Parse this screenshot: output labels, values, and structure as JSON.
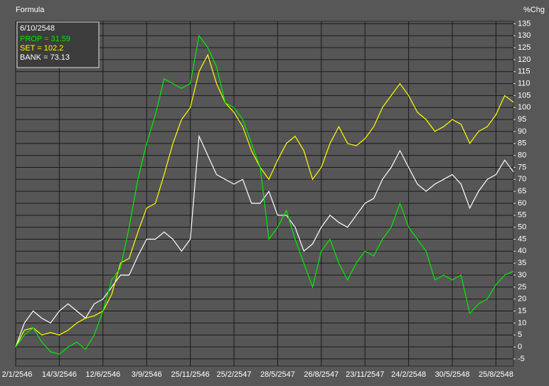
{
  "chart_data": {
    "type": "line",
    "title": "Formula",
    "y_axis_label": "%Chg",
    "legend_title": "6/10/2548",
    "categories": [
      "2/1/2546",
      null,
      null,
      null,
      null,
      "14/3/2546",
      null,
      null,
      null,
      null,
      "12/6/2546",
      null,
      null,
      null,
      null,
      "3/9/2546",
      null,
      null,
      null,
      null,
      "25/11/2546",
      null,
      null,
      null,
      null,
      "25/2/2547",
      null,
      null,
      null,
      null,
      "28/5/2547",
      null,
      null,
      null,
      null,
      "26/8/2547",
      null,
      null,
      null,
      null,
      "23/11/2547",
      null,
      null,
      null,
      null,
      "24/2/2548",
      null,
      null,
      null,
      null,
      "30/5/2548",
      null,
      null,
      null,
      null,
      "25/8/2548",
      null,
      null
    ],
    "series": [
      {
        "name": "PROP = 31.59",
        "color": "#00ee00",
        "values": [
          0,
          5,
          8,
          2,
          -2,
          -3,
          0,
          2,
          -1,
          5,
          15,
          28,
          33,
          50,
          70,
          85,
          97,
          112,
          110,
          108,
          110,
          130,
          125,
          117,
          102,
          100,
          95,
          85,
          75,
          45,
          50,
          57,
          45,
          35,
          25,
          40,
          45,
          35,
          28,
          35,
          40,
          38,
          45,
          50,
          60,
          50,
          45,
          40,
          28,
          30,
          28,
          30,
          14,
          18,
          20,
          26,
          30,
          31.59
        ]
      },
      {
        "name": "SET = 102.2",
        "color": "#ffff00",
        "values": [
          0,
          7,
          8,
          5,
          6,
          5,
          7,
          10,
          12,
          13,
          15,
          22,
          35,
          37,
          48,
          58,
          60,
          72,
          85,
          95,
          100,
          115,
          122,
          110,
          102,
          98,
          92,
          82,
          75,
          70,
          78,
          85,
          88,
          82,
          70,
          75,
          85,
          92,
          85,
          84,
          87,
          92,
          100,
          105,
          110,
          105,
          98,
          95,
          90,
          92,
          95,
          93,
          85,
          90,
          92,
          97,
          105,
          102.2
        ]
      },
      {
        "name": "BANK = 73.13",
        "color": "#ffffff",
        "values": [
          0,
          10,
          15,
          12,
          10,
          15,
          18,
          15,
          12,
          18,
          20,
          25,
          30,
          30,
          38,
          45,
          45,
          48,
          45,
          40,
          45,
          88,
          80,
          72,
          70,
          68,
          70,
          60,
          60,
          65,
          55,
          55,
          50,
          40,
          43,
          50,
          55,
          52,
          50,
          55,
          60,
          62,
          70,
          75,
          82,
          75,
          68,
          65,
          68,
          70,
          72,
          68,
          58,
          65,
          70,
          72,
          78,
          73.13
        ]
      }
    ],
    "ylim": [
      -8,
      136
    ],
    "yticks": [
      -5,
      0,
      5,
      10,
      15,
      20,
      25,
      30,
      35,
      40,
      45,
      50,
      55,
      60,
      65,
      70,
      75,
      80,
      85,
      90,
      95,
      100,
      105,
      110,
      115,
      120,
      125,
      130,
      135
    ],
    "grid": true
  }
}
